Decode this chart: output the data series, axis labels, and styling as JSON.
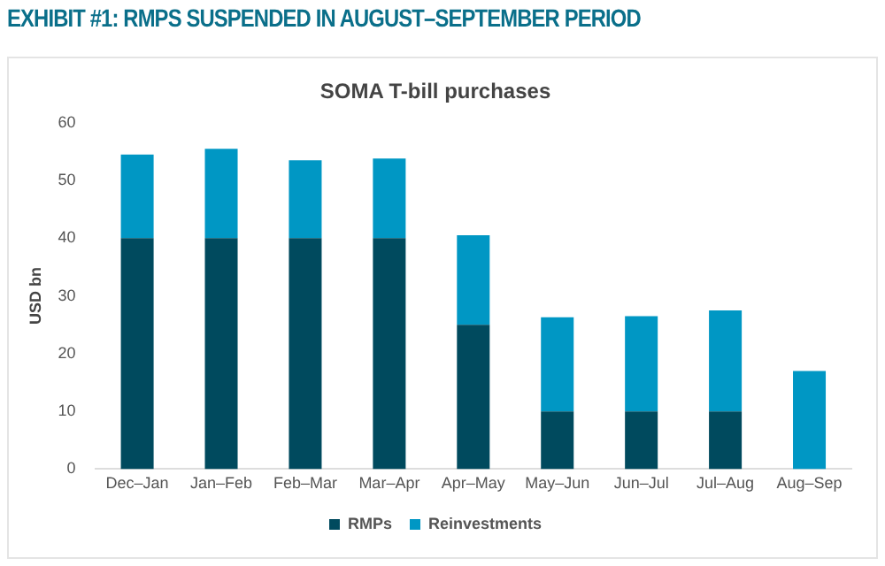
{
  "chart_data": {
    "type": "bar",
    "title": "EXHIBIT #1: RMPS SUSPENDED IN AUGUST–SEPTEMBER PERIOD",
    "subtitle": "SOMA T-bill purchases",
    "ylabel": "USD bn",
    "categories": [
      "Dec–Jan",
      "Jan–Feb",
      "Feb–Mar",
      "Mar–Apr",
      "Apr–May",
      "May–Jun",
      "Jun–Jul",
      "Jul–Aug",
      "Aug–Sep"
    ],
    "series": [
      {
        "name": "RMPs",
        "color": "#004a5e",
        "values": [
          40,
          40,
          40,
          40,
          25,
          10,
          10,
          10,
          0
        ]
      },
      {
        "name": "Reinvestments",
        "color": "#0097c4",
        "values": [
          14.5,
          15.5,
          13.5,
          13.8,
          15.5,
          16.3,
          16.5,
          17.5,
          17
        ]
      }
    ],
    "stacked": true,
    "ylim": [
      0,
      60
    ],
    "yticks": [
      0,
      10,
      20,
      30,
      40,
      50,
      60
    ],
    "grid": false,
    "legend": "bottom"
  }
}
